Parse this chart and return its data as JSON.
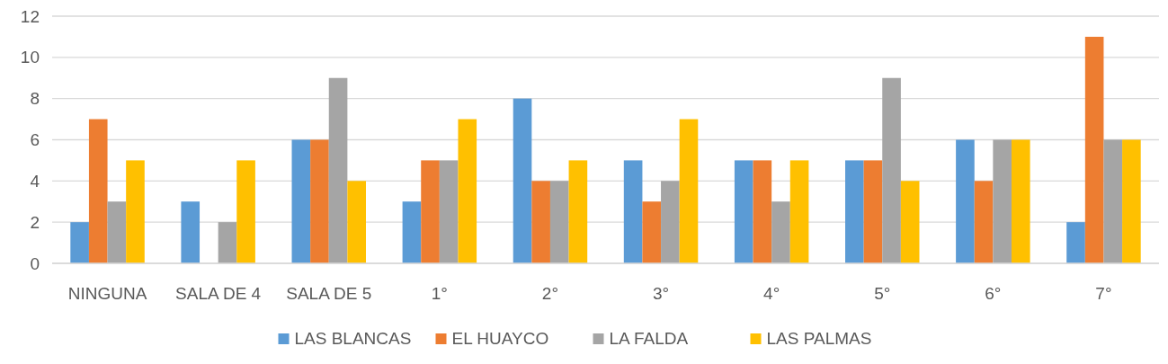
{
  "chart_data": {
    "type": "bar",
    "categories": [
      "NINGUNA",
      "SALA DE 4",
      "SALA DE 5",
      "1°",
      "2°",
      "3°",
      "4°",
      "5°",
      "6°",
      "7°"
    ],
    "series": [
      {
        "name": "LAS BLANCAS",
        "color": "#5b9bd5",
        "values": [
          2,
          3,
          6,
          3,
          8,
          5,
          5,
          5,
          6,
          2
        ]
      },
      {
        "name": "EL HUAYCO",
        "color": "#ed7d31",
        "values": [
          7,
          0,
          6,
          5,
          4,
          3,
          5,
          5,
          4,
          11
        ]
      },
      {
        "name": "LA FALDA",
        "color": "#a5a5a5",
        "values": [
          3,
          2,
          9,
          5,
          4,
          4,
          3,
          9,
          6,
          6
        ]
      },
      {
        "name": "LAS PALMAS",
        "color": "#ffc000",
        "values": [
          5,
          5,
          4,
          7,
          5,
          7,
          5,
          4,
          6,
          6
        ]
      }
    ],
    "ylim": [
      0,
      12
    ],
    "yticks": [
      0,
      2,
      4,
      6,
      8,
      10,
      12
    ],
    "grid": "y",
    "legend": "bottom"
  }
}
